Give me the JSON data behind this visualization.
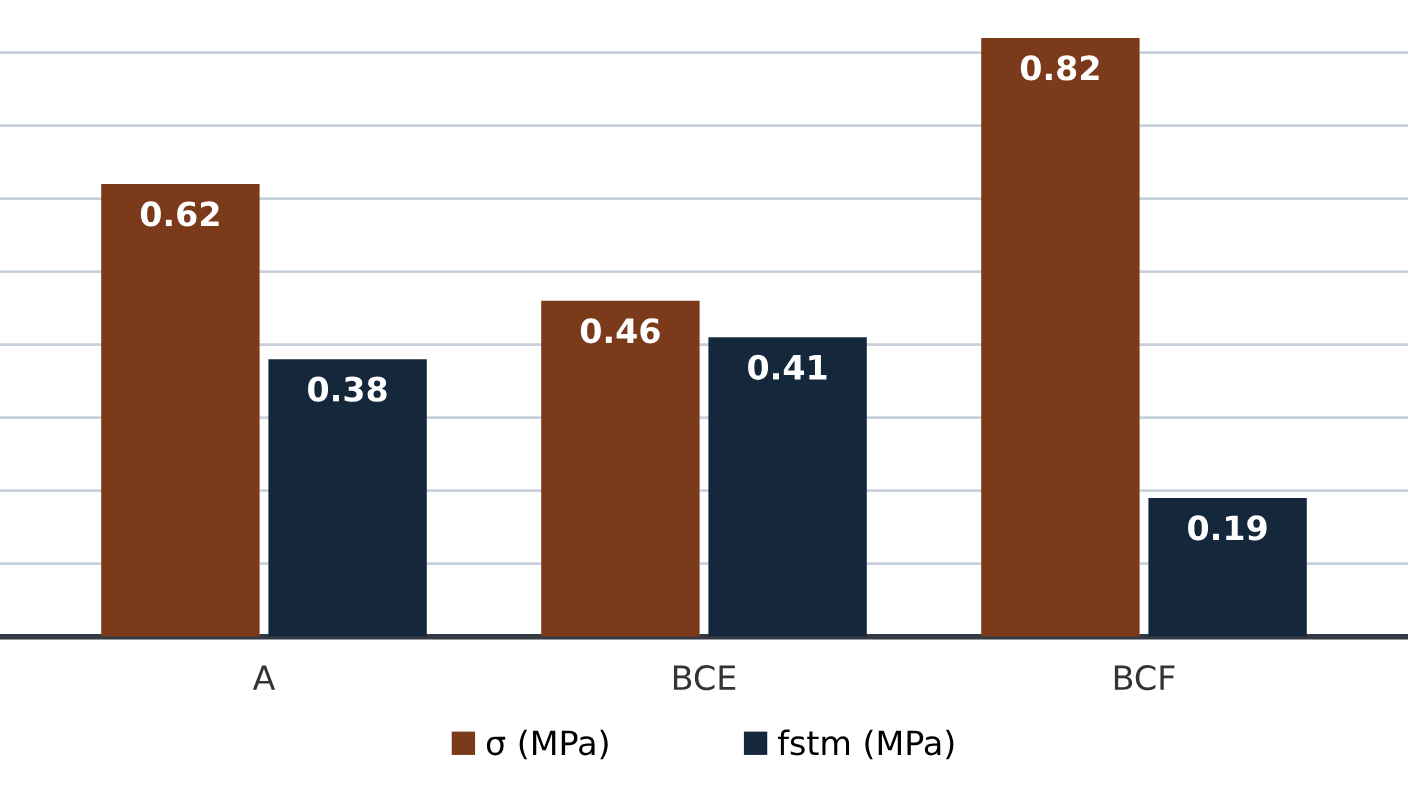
{
  "chart_data": {
    "type": "bar",
    "categories": [
      "A",
      "BCE",
      "BCF"
    ],
    "series": [
      {
        "name": "σ (MPa)",
        "color": "#7b3a1a",
        "values": [
          0.62,
          0.46,
          0.82
        ]
      },
      {
        "name": "fstm (MPa)",
        "color": "#15283b",
        "values": [
          0.38,
          0.41,
          0.19
        ]
      }
    ],
    "yticks": [
      {
        "value": 0,
        "label": null
      },
      {
        "value": 0.1,
        "label": null
      },
      {
        "value": 0.2,
        "label": null
      },
      {
        "value": 0.3,
        "label": null
      },
      {
        "value": 0.4,
        "label": null
      },
      {
        "value": 0.5,
        "label": null
      },
      {
        "value": 0.6,
        "label": null
      },
      {
        "value": 0.7,
        "label": null
      },
      {
        "value": 0.8,
        "label": null
      }
    ],
    "tick_labels": "x",
    "grid": "y",
    "legend": "bottom",
    "data_labels": true
  }
}
